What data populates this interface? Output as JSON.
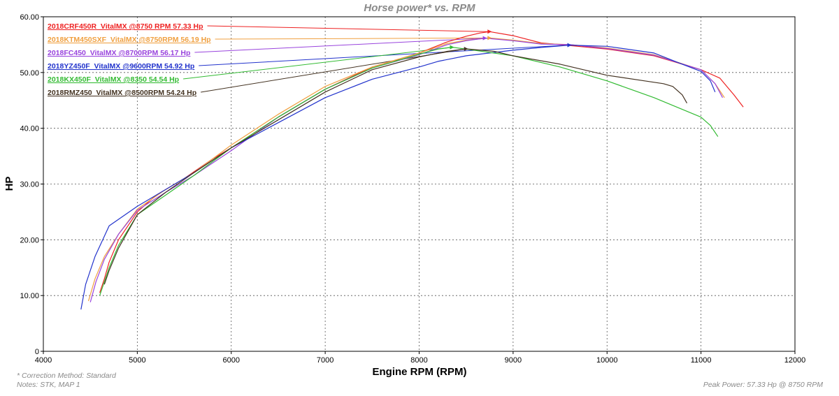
{
  "chart_data": {
    "type": "line",
    "title": "Horse power* vs. RPM",
    "xlabel": "Engine RPM (RPM)",
    "ylabel": "HP",
    "xlim": [
      4000,
      12000
    ],
    "ylim": [
      0,
      60
    ],
    "xticks": [
      4000,
      5000,
      6000,
      7000,
      8000,
      9000,
      10000,
      11000,
      12000
    ],
    "yticks": [
      0,
      10,
      20,
      30,
      40,
      50,
      60
    ],
    "ytick_labels": [
      "0",
      "10.00",
      "20.00",
      "30.00",
      "40.00",
      "50.00",
      "60.00"
    ],
    "grid": true,
    "legend_position": "top-left",
    "series": [
      {
        "name": "2018CRF450R_VitalMX @8750 RPM  57.33 Hp",
        "color": "#ee2222",
        "peak": [
          8750,
          57.33
        ],
        "x": [
          4600,
          4650,
          4700,
          4800,
          5000,
          5200,
          5500,
          5800,
          6000,
          6500,
          7000,
          7500,
          8000,
          8300,
          8500,
          8650,
          8750,
          9000,
          9300,
          9500,
          10000,
          10500,
          11000,
          11200,
          11350,
          11450
        ],
        "y": [
          10.5,
          13,
          16,
          20,
          25,
          28,
          31,
          34.5,
          36.5,
          42,
          47,
          51,
          53.5,
          55.5,
          56.5,
          57.1,
          57.33,
          56.6,
          55.3,
          55,
          54.2,
          53,
          50.5,
          49,
          46,
          43.8
        ]
      },
      {
        "name": "2018KTM450SXF_VitalMX @8750RPM  56.19 Hp",
        "color": "#f0a040",
        "peak": [
          8750,
          56.19
        ],
        "x": [
          4480,
          4550,
          4650,
          4800,
          5000,
          5300,
          5600,
          6000,
          6500,
          7000,
          7500,
          8000,
          8300,
          8500,
          8750,
          9000,
          9300,
          9600,
          10000,
          10500,
          11000,
          11150,
          11250
        ],
        "y": [
          9,
          13,
          17,
          21,
          25.5,
          29,
          32,
          37,
          42.5,
          47.5,
          51,
          53.5,
          55.2,
          55.8,
          56.19,
          55.8,
          55.2,
          55,
          54.4,
          53.2,
          50.5,
          48,
          45.5
        ]
      },
      {
        "name": "2018FC450_VitalMX @8700RPM  56.17 Hp",
        "color": "#9944dd",
        "peak": [
          8700,
          56.17
        ],
        "x": [
          4500,
          4560,
          4650,
          4800,
          5000,
          5300,
          5600,
          6000,
          6500,
          7000,
          7500,
          8000,
          8300,
          8500,
          8700,
          9000,
          9300,
          9600,
          10000,
          10500,
          11000,
          11150,
          11230
        ],
        "y": [
          8.8,
          12.5,
          16.5,
          21,
          25.3,
          28.5,
          31.5,
          36,
          42,
          47,
          50.8,
          53.2,
          55,
          55.7,
          56.17,
          55.7,
          55.1,
          55,
          54.3,
          53.1,
          50.5,
          48,
          45.5
        ]
      },
      {
        "name": "2018YZ450F_VitalMX @9600RPM  54.92 Hp",
        "color": "#2233cc",
        "peak": [
          9600,
          54.92
        ],
        "x": [
          4400,
          4450,
          4550,
          4700,
          5000,
          5300,
          5600,
          6000,
          6500,
          7000,
          7500,
          8000,
          8200,
          8500,
          9000,
          9300,
          9600,
          10000,
          10500,
          10800,
          11000,
          11100,
          11150
        ],
        "y": [
          7.5,
          12,
          17,
          22.5,
          26,
          29,
          32,
          36.5,
          41,
          45.5,
          48.8,
          51,
          52,
          53,
          54,
          54.5,
          54.92,
          54.7,
          53.5,
          51.5,
          50.2,
          48.5,
          46.5
        ]
      },
      {
        "name": "2018KX450F_VitalMX @8350 54.54 Hp",
        "color": "#33bb33",
        "peak": [
          8350,
          54.54
        ],
        "x": [
          4600,
          4700,
          4800,
          5000,
          5300,
          5600,
          6000,
          6500,
          7000,
          7500,
          8000,
          8200,
          8350,
          8500,
          9000,
          9500,
          10000,
          10500,
          11000,
          11100,
          11180
        ],
        "y": [
          10,
          15,
          19,
          24.5,
          28,
          31.5,
          36.5,
          42,
          47,
          50.8,
          53.3,
          54.2,
          54.54,
          54.2,
          53,
          51,
          48.5,
          45.5,
          42,
          40.5,
          38.5
        ]
      },
      {
        "name": "2018RMZ450_VitalMX @8500RPM  54.24 Hp",
        "color": "#443322",
        "peak": [
          8500,
          54.24
        ],
        "x": [
          4650,
          4700,
          4800,
          5000,
          5300,
          5600,
          6000,
          6500,
          7000,
          7500,
          8000,
          8300,
          8500,
          8800,
          9000,
          9500,
          10000,
          10400,
          10600,
          10700,
          10800,
          10850
        ],
        "y": [
          12,
          14.5,
          18.5,
          24.5,
          28.5,
          32,
          36.5,
          41.5,
          46.5,
          50.5,
          52.8,
          53.8,
          54.24,
          53.8,
          53,
          51.5,
          49.5,
          48.5,
          48,
          47.5,
          46,
          44.5
        ]
      }
    ],
    "annotations": {
      "correction": "* Correction Method: Standard",
      "notes": "Notes: STK, MAP 1",
      "peak_power": "Peak Power: 57.33 Hp @ 8750 RPM"
    }
  }
}
